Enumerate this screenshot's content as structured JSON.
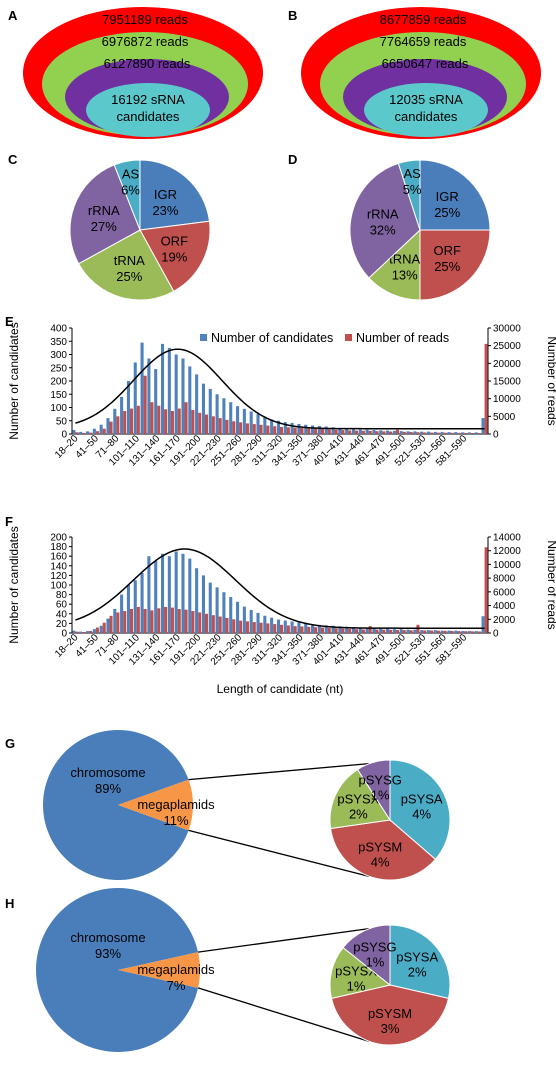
{
  "panel_labels": {
    "A": "A",
    "B": "B",
    "C": "C",
    "D": "D",
    "E": "E",
    "F": "F",
    "G": "G",
    "H": "H"
  },
  "colors": {
    "red": "#ff0000",
    "green": "#92d050",
    "purple": "#7030a0",
    "teal": "#5bc8cc",
    "pie_blue": "#4a7ebb",
    "pie_red": "#c0504d",
    "pie_green": "#9bbb59",
    "pie_purple": "#8064a2",
    "pie_cyan": "#4bacc6",
    "orange": "#f79646",
    "bar_blue": "#4f81bd",
    "bar_red": "#c0504d"
  },
  "chart_data": [
    {
      "panel": "A",
      "type": "nested-ellipse",
      "layers": [
        {
          "label": "7951189 reads",
          "value": 7951189
        },
        {
          "label": "6976872 reads",
          "value": 6976872
        },
        {
          "label": "6127890 reads",
          "value": 6127890
        },
        {
          "label_line1": "16192 sRNA",
          "label_line2": "candidates",
          "value": 16192
        }
      ]
    },
    {
      "panel": "B",
      "type": "nested-ellipse",
      "layers": [
        {
          "label": "8677859 reads",
          "value": 8677859
        },
        {
          "label": "7764659 reads",
          "value": 7764659
        },
        {
          "label": "6650647 reads",
          "value": 6650647
        },
        {
          "label_line1": "12035 sRNA",
          "label_line2": "candidates",
          "value": 12035
        }
      ]
    },
    {
      "panel": "C",
      "type": "pie",
      "slices": [
        {
          "name": "IGR",
          "pct": "23%",
          "value": 23
        },
        {
          "name": "ORF",
          "pct": "19%",
          "value": 19
        },
        {
          "name": "tRNA",
          "pct": "25%",
          "value": 25
        },
        {
          "name": "rRNA",
          "pct": "27%",
          "value": 27
        },
        {
          "name": "AS",
          "pct": "6%",
          "value": 6
        }
      ]
    },
    {
      "panel": "D",
      "type": "pie",
      "slices": [
        {
          "name": "IGR",
          "pct": "25%",
          "value": 25
        },
        {
          "name": "ORF",
          "pct": "25%",
          "value": 25
        },
        {
          "name": "tRNA",
          "pct": "13%",
          "value": 13
        },
        {
          "name": "rRNA",
          "pct": "32%",
          "value": 32
        },
        {
          "name": "AS",
          "pct": "5%",
          "value": 5
        }
      ]
    },
    {
      "panel": "E",
      "type": "bar",
      "ylabel": "Number of candidates",
      "y2label": "Number of reads",
      "ylim": [
        0,
        400
      ],
      "y2lim": [
        0,
        30000
      ],
      "yticks": [
        0,
        50,
        100,
        150,
        200,
        250,
        300,
        350,
        400
      ],
      "y2ticks": [
        0,
        5000,
        10000,
        15000,
        20000,
        25000,
        30000
      ],
      "xtick_labels": [
        "18–20",
        "41–50",
        "71–80",
        "101–110",
        "131–140",
        "161–170",
        "191–200",
        "221–230",
        "251–260",
        "281–290",
        "311–320",
        "341–350",
        "371–380",
        "401–410",
        "431–440",
        "461–470",
        "491–500",
        "521–530",
        "551–560",
        "581–590"
      ],
      "series": [
        {
          "name": "Number of candidates",
          "values": [
            15,
            8,
            10,
            20,
            35,
            60,
            95,
            140,
            200,
            270,
            345,
            285,
            245,
            340,
            325,
            300,
            285,
            255,
            225,
            190,
            170,
            150,
            135,
            120,
            105,
            95,
            85,
            75,
            65,
            55,
            50,
            45,
            42,
            38,
            35,
            32,
            30,
            28,
            25,
            22,
            20,
            18,
            17,
            16,
            15,
            14,
            13,
            12,
            11,
            10,
            10,
            9,
            9,
            8,
            8,
            7,
            7,
            6,
            6,
            6,
            60
          ]
        },
        {
          "name": "Number of reads",
          "values": [
            500,
            300,
            400,
            800,
            1500,
            3500,
            5000,
            6500,
            7200,
            8000,
            16500,
            9000,
            8000,
            7000,
            6500,
            7200,
            9000,
            6800,
            6000,
            5500,
            5000,
            4500,
            4000,
            3600,
            3300,
            3000,
            2800,
            2600,
            2400,
            2200,
            2000,
            1900,
            1800,
            1700,
            1600,
            1500,
            1400,
            1300,
            1200,
            1100,
            1000,
            950,
            900,
            850,
            800,
            750,
            700,
            1200,
            600,
            550,
            500,
            450,
            400,
            380,
            360,
            340,
            320,
            300,
            280,
            260,
            25500
          ]
        }
      ],
      "fit_curve": {
        "peak_x_index": 15,
        "peak_y": 320,
        "sigma": 6.5,
        "baseline": 20
      }
    },
    {
      "panel": "F",
      "type": "bar",
      "xlabel": "Length of candidate (nt)",
      "ylabel": "Number of candidates",
      "y2label": "Number of reads",
      "ylim": [
        0,
        200
      ],
      "y2lim": [
        0,
        14000
      ],
      "yticks": [
        0,
        20,
        40,
        60,
        80,
        100,
        120,
        140,
        160,
        180,
        200
      ],
      "y2ticks": [
        0,
        2000,
        4000,
        6000,
        8000,
        10000,
        12000,
        14000
      ],
      "xtick_labels": [
        "18–20",
        "41–50",
        "71–80",
        "101–110",
        "131–140",
        "161–170",
        "191–200",
        "221–230",
        "251–260",
        "281–290",
        "311–320",
        "341–350",
        "371–380",
        "401–410",
        "431–440",
        "461–470",
        "491–500",
        "521–530",
        "551–560",
        "581–590"
      ],
      "series": [
        {
          "name": "Number of candidates",
          "values": [
            5,
            3,
            4,
            8,
            15,
            30,
            50,
            80,
            100,
            110,
            125,
            160,
            150,
            165,
            160,
            170,
            165,
            155,
            135,
            120,
            105,
            95,
            85,
            75,
            65,
            55,
            48,
            42,
            36,
            32,
            28,
            26,
            24,
            22,
            20,
            18,
            17,
            16,
            15,
            14,
            13,
            12,
            11,
            10,
            10,
            9,
            9,
            8,
            8,
            7,
            7,
            6,
            6,
            6,
            5,
            5,
            5,
            4,
            4,
            4,
            35
          ]
        },
        {
          "name": "Number of reads",
          "values": [
            200,
            150,
            300,
            800,
            1500,
            2500,
            3000,
            3200,
            3500,
            3800,
            3500,
            3300,
            3600,
            3800,
            3700,
            3500,
            3400,
            3200,
            3000,
            2800,
            2600,
            2400,
            2200,
            2000,
            1800,
            1700,
            1600,
            1500,
            1400,
            1300,
            1200,
            1100,
            1000,
            950,
            900,
            850,
            800,
            750,
            700,
            650,
            600,
            560,
            520,
            1000,
            500,
            480,
            460,
            440,
            420,
            400,
            1200,
            380,
            360,
            340,
            320,
            300,
            280,
            260,
            240,
            220,
            12500
          ]
        }
      ],
      "fit_curve": {
        "peak_x_index": 16,
        "peak_y": 175,
        "sigma": 7.5,
        "baseline": 10
      }
    },
    {
      "panel": "G",
      "type": "pie-of-pie",
      "main": [
        {
          "name": "chromosome",
          "pct": "89%",
          "value": 89
        },
        {
          "name": "megaplamids",
          "pct": "11%",
          "value": 11
        }
      ],
      "sub": [
        {
          "name": "pSYSA",
          "pct": "4%",
          "value": 4
        },
        {
          "name": "pSYSM",
          "pct": "4%",
          "value": 4
        },
        {
          "name": "pSYSX",
          "pct": "2%",
          "value": 2
        },
        {
          "name": "pSYSG",
          "pct": "1%",
          "value": 1
        }
      ]
    },
    {
      "panel": "H",
      "type": "pie-of-pie",
      "main": [
        {
          "name": "chromosome",
          "pct": "93%",
          "value": 93
        },
        {
          "name": "megaplamids",
          "pct": "7%",
          "value": 7
        }
      ],
      "sub": [
        {
          "name": "pSYSA",
          "pct": "2%",
          "value": 2
        },
        {
          "name": "pSYSM",
          "pct": "3%",
          "value": 3
        },
        {
          "name": "pSYSX",
          "pct": "1%",
          "value": 1
        },
        {
          "name": "pSYSG",
          "pct": "1%",
          "value": 1
        }
      ]
    }
  ]
}
